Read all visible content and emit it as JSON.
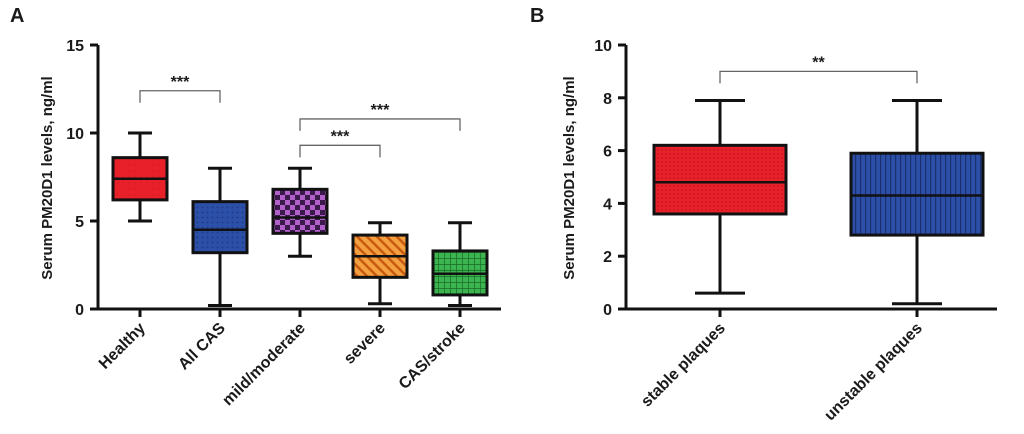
{
  "chart_data": [
    {
      "panel": "A",
      "type": "box",
      "ylabel": "Serum PM20D1 levels, ng/ml",
      "ylim": [
        0,
        15
      ],
      "yticks": [
        0,
        5,
        10,
        15
      ],
      "categories": [
        "Healthy",
        "All CAS",
        "mild/moderate",
        "severe",
        "CAS/stroke"
      ],
      "boxes": [
        {
          "category": "Healthy",
          "min": 5.0,
          "q1": 6.2,
          "median": 7.4,
          "q3": 8.6,
          "max": 10.0,
          "color": "#e8202a",
          "pattern": "solid"
        },
        {
          "category": "All CAS",
          "min": 0.2,
          "q1": 3.2,
          "median": 4.5,
          "q3": 6.1,
          "max": 8.0,
          "color": "#2c4fa8",
          "pattern": "dots"
        },
        {
          "category": "mild/moderate",
          "min": 3.0,
          "q1": 4.3,
          "median": 5.2,
          "q3": 6.8,
          "max": 8.0,
          "color": "#8a3aa6",
          "pattern": "checker"
        },
        {
          "category": "severe",
          "min": 0.3,
          "q1": 1.8,
          "median": 3.0,
          "q3": 4.2,
          "max": 4.9,
          "color": "#f28a25",
          "pattern": "diagonal"
        },
        {
          "category": "CAS/stroke",
          "min": 0.2,
          "q1": 0.8,
          "median": 2.0,
          "q3": 3.3,
          "max": 4.9,
          "color": "#2ea043",
          "pattern": "grid"
        }
      ],
      "significance": [
        {
          "from": "Healthy",
          "to": "All CAS",
          "label": "***",
          "y": 12.4
        },
        {
          "from": "mild/moderate",
          "to": "severe",
          "label": "***",
          "y": 9.3
        },
        {
          "from": "mild/moderate",
          "to": "CAS/stroke",
          "label": "***",
          "y": 10.8
        }
      ]
    },
    {
      "panel": "B",
      "type": "box",
      "ylabel": "Serum PM20D1 levels, ng/ml",
      "ylim": [
        0,
        10
      ],
      "yticks": [
        0,
        2,
        4,
        6,
        8,
        10
      ],
      "categories": [
        "stable plaques",
        "unstable plaques"
      ],
      "boxes": [
        {
          "category": "stable plaques",
          "min": 0.6,
          "q1": 3.6,
          "median": 4.8,
          "q3": 6.2,
          "max": 7.9,
          "color": "#e8202a",
          "pattern": "fine-dots"
        },
        {
          "category": "unstable plaques",
          "min": 0.2,
          "q1": 2.8,
          "median": 4.3,
          "q3": 5.9,
          "max": 7.9,
          "color": "#2c4fa8",
          "pattern": "vertical"
        }
      ],
      "significance": [
        {
          "from": "stable plaques",
          "to": "unstable plaques",
          "label": "**",
          "y": 9.0
        }
      ]
    }
  ]
}
